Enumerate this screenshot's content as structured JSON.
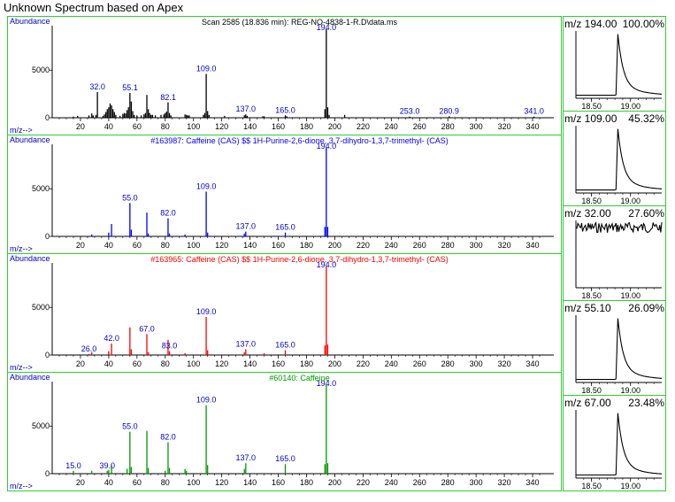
{
  "page": {
    "title": "Unknown Spectrum based on Apex"
  },
  "colors": {
    "frame": "#33cc33",
    "axis_text": "#0000cc",
    "sample": "#000000",
    "lib1": "#0000ff",
    "lib2": "#ff0000",
    "lib3": "#009900"
  },
  "chart_data": [
    {
      "type": "bar",
      "title": "Scan 2585 (18.836 min): REG-NO-4838-1-R.D\\data.ms",
      "ylabel": "Abundance",
      "xlabel": "m/z-->",
      "xlim": [
        0,
        350
      ],
      "ylim": [
        0,
        9300
      ],
      "xticks": [
        20,
        40,
        60,
        80,
        100,
        120,
        140,
        160,
        180,
        200,
        220,
        240,
        260,
        280,
        300,
        320,
        340
      ],
      "yticks": [
        0,
        5000
      ],
      "color": "#000000",
      "title_color": "#000000",
      "peaks": [
        [
          15,
          120
        ],
        [
          18,
          200
        ],
        [
          26,
          250
        ],
        [
          28,
          450
        ],
        [
          29,
          250
        ],
        [
          31,
          300
        ],
        [
          32,
          2700
        ],
        [
          36,
          200
        ],
        [
          37,
          350
        ],
        [
          38,
          600
        ],
        [
          39,
          900
        ],
        [
          40,
          1100
        ],
        [
          41,
          1500
        ],
        [
          42,
          1300
        ],
        [
          43,
          900
        ],
        [
          44,
          600
        ],
        [
          45,
          300
        ],
        [
          48,
          200
        ],
        [
          50,
          400
        ],
        [
          51,
          500
        ],
        [
          52,
          450
        ],
        [
          53,
          800
        ],
        [
          54,
          1100
        ],
        [
          55,
          2600
        ],
        [
          56,
          1700
        ],
        [
          57,
          700
        ],
        [
          58,
          300
        ],
        [
          60,
          250
        ],
        [
          63,
          250
        ],
        [
          65,
          350
        ],
        [
          66,
          500
        ],
        [
          67,
          2400
        ],
        [
          68,
          900
        ],
        [
          69,
          500
        ],
        [
          70,
          300
        ],
        [
          71,
          300
        ],
        [
          73,
          250
        ],
        [
          77,
          300
        ],
        [
          79,
          350
        ],
        [
          80,
          500
        ],
        [
          81,
          650
        ],
        [
          82,
          1600
        ],
        [
          83,
          500
        ],
        [
          84,
          250
        ],
        [
          94,
          350
        ],
        [
          95,
          300
        ],
        [
          96,
          250
        ],
        [
          97,
          250
        ],
        [
          107,
          300
        ],
        [
          108,
          500
        ],
        [
          109,
          4600
        ],
        [
          110,
          700
        ],
        [
          111,
          300
        ],
        [
          122,
          200
        ],
        [
          136,
          250
        ],
        [
          137,
          350
        ],
        [
          138,
          200
        ],
        [
          149,
          150
        ],
        [
          150,
          150
        ],
        [
          165,
          250
        ],
        [
          166,
          150
        ],
        [
          193,
          900
        ],
        [
          194,
          9300
        ],
        [
          195,
          1100
        ],
        [
          196,
          300
        ],
        [
          207,
          300
        ],
        [
          253,
          120
        ],
        [
          281,
          150
        ],
        [
          341,
          120
        ]
      ],
      "labels": [
        {
          "mz": 32,
          "text": "32.0"
        },
        {
          "mz": 55.1,
          "text": "55.1"
        },
        {
          "mz": 82.1,
          "text": "82.1"
        },
        {
          "mz": 109,
          "text": "109.0"
        },
        {
          "mz": 137,
          "text": "137.0"
        },
        {
          "mz": 165,
          "text": "165.0"
        },
        {
          "mz": 194,
          "text": "194.0"
        },
        {
          "mz": 253,
          "text": "253.0"
        },
        {
          "mz": 280.9,
          "text": "280.9"
        },
        {
          "mz": 341,
          "text": "341.0"
        }
      ]
    },
    {
      "type": "bar",
      "title": "#163987: Caffeine (CAS) $$ 1H-Purine-2,6-dione, 3,7-dihydro-1,3,7-trimethyl- (CAS)",
      "ylabel": "Abundance",
      "xlabel": "m/z-->",
      "xlim": [
        0,
        350
      ],
      "ylim": [
        0,
        9300
      ],
      "xticks": [
        20,
        40,
        60,
        80,
        100,
        120,
        140,
        160,
        180,
        200,
        220,
        240,
        260,
        280,
        300,
        320,
        340
      ],
      "yticks": [
        0,
        5000
      ],
      "color": "#0000ff",
      "title_color": "#0000ff",
      "peaks": [
        [
          28,
          200
        ],
        [
          40,
          400
        ],
        [
          42,
          1300
        ],
        [
          55,
          3500
        ],
        [
          56,
          700
        ],
        [
          67,
          2500
        ],
        [
          68,
          300
        ],
        [
          82,
          1900
        ],
        [
          83,
          300
        ],
        [
          94,
          200
        ],
        [
          109,
          4700
        ],
        [
          110,
          400
        ],
        [
          136,
          300
        ],
        [
          137,
          500
        ],
        [
          165,
          400
        ],
        [
          193,
          1000
        ],
        [
          194,
          9300
        ],
        [
          195,
          1000
        ]
      ],
      "labels": [
        {
          "mz": 55,
          "text": "55.0"
        },
        {
          "mz": 82,
          "text": "82.0"
        },
        {
          "mz": 109,
          "text": "109.0"
        },
        {
          "mz": 137,
          "text": "137.0"
        },
        {
          "mz": 165,
          "text": "165.0"
        },
        {
          "mz": 194,
          "text": "194.0"
        }
      ]
    },
    {
      "type": "bar",
      "title": "#163965: Caffeine (CAS) $$ 1H-Purine-2,6-dione, 3,7-dihydro-1,3,7-trimethyl- (CAS)",
      "ylabel": "Abundance",
      "xlabel": "m/z-->",
      "xlim": [
        0,
        350
      ],
      "ylim": [
        0,
        9300
      ],
      "xticks": [
        20,
        40,
        60,
        80,
        100,
        120,
        140,
        160,
        180,
        200,
        220,
        240,
        260,
        280,
        300,
        320,
        340
      ],
      "yticks": [
        0,
        5000
      ],
      "color": "#ff0000",
      "title_color": "#ff0000",
      "peaks": [
        [
          26,
          100
        ],
        [
          28,
          300
        ],
        [
          40,
          400
        ],
        [
          42,
          1200
        ],
        [
          55,
          2900
        ],
        [
          56,
          600
        ],
        [
          67,
          2200
        ],
        [
          68,
          300
        ],
        [
          82,
          1600
        ],
        [
          83,
          400
        ],
        [
          94,
          200
        ],
        [
          109,
          4000
        ],
        [
          110,
          500
        ],
        [
          136,
          300
        ],
        [
          137,
          600
        ],
        [
          150,
          200
        ],
        [
          165,
          500
        ],
        [
          193,
          1000
        ],
        [
          194,
          9300
        ],
        [
          195,
          1100
        ]
      ],
      "labels": [
        {
          "mz": 26,
          "text": "26.0"
        },
        {
          "mz": 42,
          "text": "42.0"
        },
        {
          "mz": 67,
          "text": "67.0"
        },
        {
          "mz": 83,
          "text": "83.0"
        },
        {
          "mz": 109,
          "text": "109.0"
        },
        {
          "mz": 137,
          "text": "137.0"
        },
        {
          "mz": 165,
          "text": "165.0"
        },
        {
          "mz": 194,
          "text": "194.0"
        }
      ]
    },
    {
      "type": "bar",
      "title": "#60140: Caffeine",
      "ylabel": "Abundance",
      "xlabel": "m/z-->",
      "xlim": [
        0,
        350
      ],
      "ylim": [
        0,
        9300
      ],
      "xticks": [
        20,
        40,
        60,
        80,
        100,
        120,
        140,
        160,
        180,
        200,
        220,
        240,
        260,
        280,
        300,
        320,
        340
      ],
      "yticks": [
        0,
        5000
      ],
      "color": "#009900",
      "title_color": "#009900",
      "peaks": [
        [
          15,
          300
        ],
        [
          28,
          300
        ],
        [
          39,
          300
        ],
        [
          40,
          400
        ],
        [
          42,
          900
        ],
        [
          53,
          500
        ],
        [
          55,
          4400
        ],
        [
          56,
          700
        ],
        [
          67,
          4500
        ],
        [
          68,
          600
        ],
        [
          80,
          300
        ],
        [
          82,
          3300
        ],
        [
          83,
          600
        ],
        [
          94,
          500
        ],
        [
          95,
          300
        ],
        [
          109,
          7200
        ],
        [
          110,
          900
        ],
        [
          136,
          500
        ],
        [
          137,
          1100
        ],
        [
          165,
          1000
        ],
        [
          193,
          1000
        ],
        [
          194,
          9300
        ],
        [
          195,
          1100
        ]
      ],
      "labels": [
        {
          "mz": 15,
          "text": "15.0"
        },
        {
          "mz": 39,
          "text": "39.0"
        },
        {
          "mz": 55,
          "text": "55.0"
        },
        {
          "mz": 82,
          "text": "82.0"
        },
        {
          "mz": 109,
          "text": "109.0"
        },
        {
          "mz": 137,
          "text": "137.0"
        },
        {
          "mz": 165,
          "text": "165.0"
        },
        {
          "mz": 194,
          "text": "194.0"
        }
      ]
    },
    {
      "type": "line",
      "caption": "m/z 194.00",
      "percent": "100.00%",
      "xlim": [
        18.3,
        19.4
      ],
      "xticks": [
        18.5,
        19.0
      ],
      "xtick_labels": [
        "18.50",
        "19.00"
      ],
      "shape": "peak",
      "apex": 18.836,
      "amplitude": 1.0
    },
    {
      "type": "line",
      "caption": "m/z 109.00",
      "percent": "45.32%",
      "xlim": [
        18.3,
        19.4
      ],
      "xticks": [
        18.5,
        19.0
      ],
      "xtick_labels": [
        "18.50",
        "19.00"
      ],
      "shape": "peak",
      "apex": 18.836,
      "amplitude": 1.0
    },
    {
      "type": "line",
      "caption": "m/z 32.00",
      "percent": "27.60%",
      "xlim": [
        18.3,
        19.4
      ],
      "xticks": [
        18.5,
        19.0
      ],
      "xtick_labels": [
        "18.50",
        "19.00"
      ],
      "shape": "noise",
      "apex": 18.836,
      "amplitude": 1.0
    },
    {
      "type": "line",
      "caption": "m/z 55.10",
      "percent": "26.09%",
      "xlim": [
        18.3,
        19.4
      ],
      "xticks": [
        18.5,
        19.0
      ],
      "xtick_labels": [
        "18.50",
        "19.00"
      ],
      "shape": "peak",
      "apex": 18.836,
      "amplitude": 1.0
    },
    {
      "type": "line",
      "caption": "m/z 67.00",
      "percent": "23.48%",
      "xlim": [
        18.3,
        19.4
      ],
      "xticks": [
        18.5,
        19.0
      ],
      "xtick_labels": [
        "18.50",
        "19.00"
      ],
      "shape": "peak",
      "apex": 18.836,
      "amplitude": 1.0
    }
  ]
}
